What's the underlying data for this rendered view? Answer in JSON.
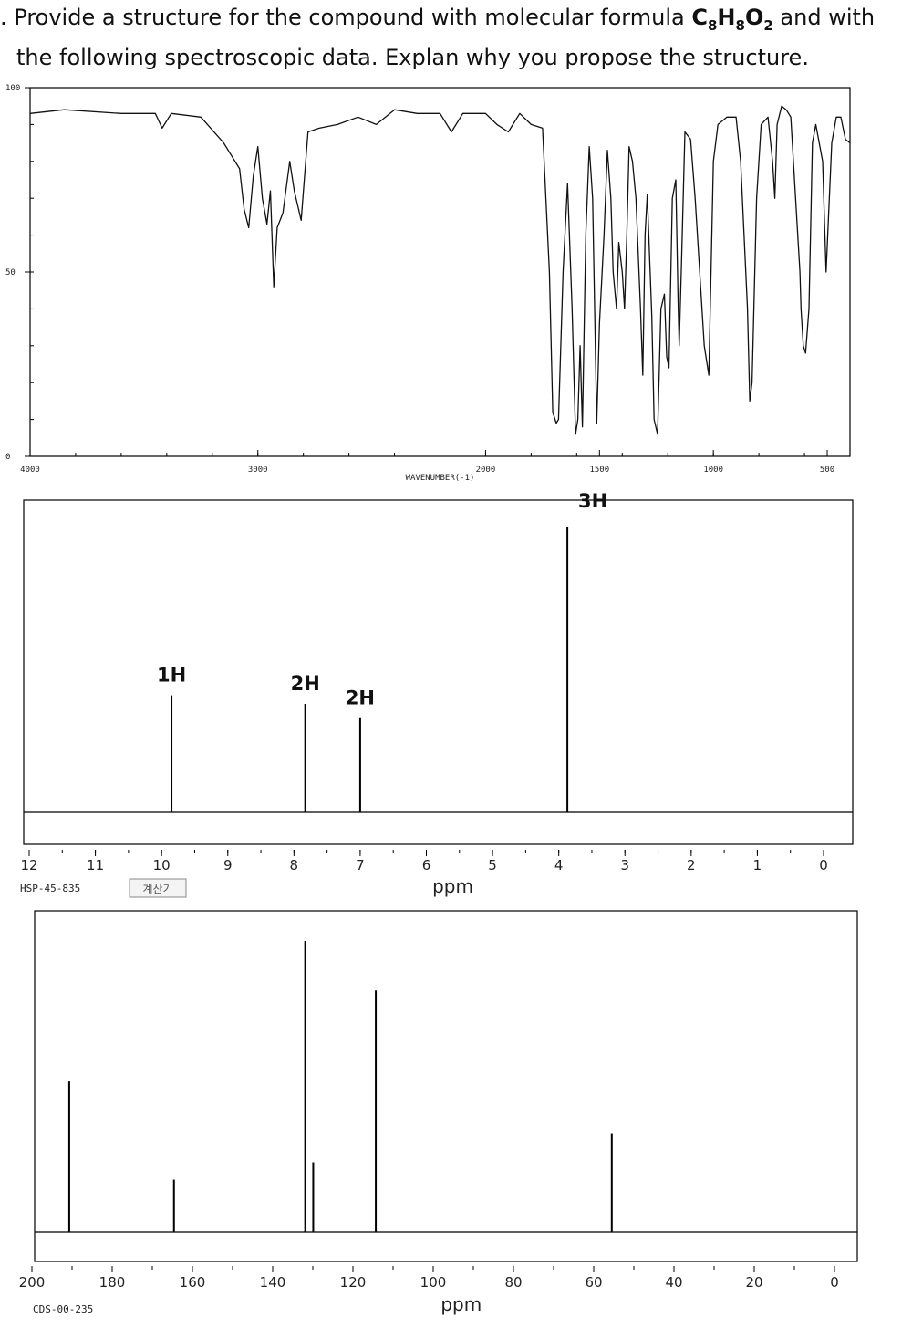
{
  "question": {
    "number": ".",
    "line1_a": "Provide a structure for the compound with molecular formula ",
    "formula_C": "C",
    "formula_C_n": "8",
    "formula_H": "H",
    "formula_H_n": "8",
    "formula_O": "O",
    "formula_O_n": "2",
    "line1_b": " and with",
    "line2": "the following spectroscopic data. Explan why you propose the structure."
  },
  "chart_data": [
    {
      "type": "line",
      "xlabel": "WAVENUMBER(-1)",
      "xlim": [
        4000,
        400
      ],
      "ylim": [
        0,
        100
      ],
      "x_tick_labels": [
        "4000",
        "3000",
        "2000",
        "1500",
        "1000",
        "500"
      ],
      "x_tick_values": [
        4000,
        3000,
        2000,
        1500,
        1000,
        500
      ],
      "y_tick_labels": [
        "0",
        "50",
        "100"
      ],
      "y_tick_values": [
        0,
        50,
        100
      ],
      "trace": [
        [
          4000,
          93
        ],
        [
          3850,
          94
        ],
        [
          3600,
          93
        ],
        [
          3450,
          93
        ],
        [
          3420,
          89
        ],
        [
          3380,
          93
        ],
        [
          3250,
          92
        ],
        [
          3150,
          85
        ],
        [
          3080,
          78
        ],
        [
          3060,
          67
        ],
        [
          3040,
          62
        ],
        [
          3020,
          76
        ],
        [
          3000,
          84
        ],
        [
          2980,
          70
        ],
        [
          2960,
          63
        ],
        [
          2945,
          72
        ],
        [
          2930,
          46
        ],
        [
          2915,
          62
        ],
        [
          2890,
          66
        ],
        [
          2860,
          80
        ],
        [
          2840,
          72
        ],
        [
          2810,
          64
        ],
        [
          2780,
          88
        ],
        [
          2730,
          89
        ],
        [
          2650,
          90
        ],
        [
          2560,
          92
        ],
        [
          2480,
          90
        ],
        [
          2400,
          94
        ],
        [
          2300,
          93
        ],
        [
          2200,
          93
        ],
        [
          2150,
          88
        ],
        [
          2100,
          93
        ],
        [
          2000,
          93
        ],
        [
          1950,
          90
        ],
        [
          1900,
          88
        ],
        [
          1850,
          93
        ],
        [
          1800,
          90
        ],
        [
          1750,
          89
        ],
        [
          1720,
          50
        ],
        [
          1705,
          12
        ],
        [
          1690,
          9
        ],
        [
          1680,
          10
        ],
        [
          1660,
          50
        ],
        [
          1640,
          74
        ],
        [
          1620,
          40
        ],
        [
          1605,
          6
        ],
        [
          1595,
          10
        ],
        [
          1585,
          30
        ],
        [
          1575,
          8
        ],
        [
          1560,
          60
        ],
        [
          1545,
          84
        ],
        [
          1530,
          70
        ],
        [
          1512,
          9
        ],
        [
          1500,
          36
        ],
        [
          1480,
          60
        ],
        [
          1465,
          83
        ],
        [
          1450,
          70
        ],
        [
          1440,
          50
        ],
        [
          1425,
          40
        ],
        [
          1415,
          58
        ],
        [
          1400,
          50
        ],
        [
          1390,
          40
        ],
        [
          1380,
          60
        ],
        [
          1370,
          84
        ],
        [
          1355,
          80
        ],
        [
          1340,
          70
        ],
        [
          1320,
          40
        ],
        [
          1310,
          22
        ],
        [
          1300,
          60
        ],
        [
          1290,
          71
        ],
        [
          1270,
          38
        ],
        [
          1260,
          10
        ],
        [
          1245,
          6
        ],
        [
          1230,
          40
        ],
        [
          1215,
          44
        ],
        [
          1205,
          27
        ],
        [
          1195,
          24
        ],
        [
          1180,
          70
        ],
        [
          1165,
          75
        ],
        [
          1155,
          42
        ],
        [
          1150,
          30
        ],
        [
          1140,
          52
        ],
        [
          1125,
          88
        ],
        [
          1100,
          86
        ],
        [
          1080,
          70
        ],
        [
          1040,
          30
        ],
        [
          1020,
          22
        ],
        [
          1000,
          80
        ],
        [
          980,
          90
        ],
        [
          940,
          92
        ],
        [
          900,
          92
        ],
        [
          880,
          80
        ],
        [
          850,
          40
        ],
        [
          840,
          15
        ],
        [
          830,
          20
        ],
        [
          810,
          70
        ],
        [
          790,
          90
        ],
        [
          760,
          92
        ],
        [
          740,
          80
        ],
        [
          730,
          70
        ],
        [
          720,
          90
        ],
        [
          700,
          95
        ],
        [
          680,
          94
        ],
        [
          660,
          92
        ],
        [
          620,
          50
        ],
        [
          615,
          40
        ],
        [
          605,
          30
        ],
        [
          595,
          28
        ],
        [
          580,
          40
        ],
        [
          565,
          85
        ],
        [
          550,
          90
        ],
        [
          520,
          80
        ],
        [
          510,
          60
        ],
        [
          505,
          50
        ],
        [
          480,
          85
        ],
        [
          460,
          92
        ],
        [
          440,
          92
        ],
        [
          420,
          86
        ],
        [
          400,
          85
        ]
      ]
    },
    {
      "type": "line",
      "xlabel": "ppm",
      "xlim": [
        12,
        0
      ],
      "x_tick_labels": [
        "12",
        "11",
        "10",
        "9",
        "8",
        "7",
        "6",
        "5",
        "4",
        "3",
        "2",
        "1",
        "0"
      ],
      "x_tick_values": [
        12,
        11,
        10,
        9,
        8,
        7,
        6,
        5,
        4,
        3,
        2,
        1,
        0
      ],
      "ylim": [
        0,
        100
      ],
      "peaks": [
        {
          "x": 9.85,
          "height": 41,
          "label": "1H"
        },
        {
          "x": 7.83,
          "height": 38,
          "label": "2H"
        },
        {
          "x": 7.0,
          "height": 33,
          "label": "2H"
        },
        {
          "x": 3.87,
          "height": 100,
          "label": "3H"
        }
      ],
      "code": "HSP-45-835",
      "button": "계산기"
    },
    {
      "type": "line",
      "xlabel": "ppm",
      "xlim": [
        200,
        0
      ],
      "x_tick_labels": [
        "200",
        "180",
        "160",
        "140",
        "120",
        "100",
        "80",
        "60",
        "40",
        "20",
        "0"
      ],
      "x_tick_values": [
        200,
        180,
        160,
        140,
        120,
        100,
        80,
        60,
        40,
        20,
        0
      ],
      "ylim": [
        0,
        100
      ],
      "peaks": [
        {
          "x": 190.7,
          "height": 52
        },
        {
          "x": 164.6,
          "height": 18
        },
        {
          "x": 131.9,
          "height": 100
        },
        {
          "x": 129.9,
          "height": 24
        },
        {
          "x": 114.3,
          "height": 83
        },
        {
          "x": 55.5,
          "height": 34
        }
      ],
      "code": "CDS-00-235"
    }
  ]
}
